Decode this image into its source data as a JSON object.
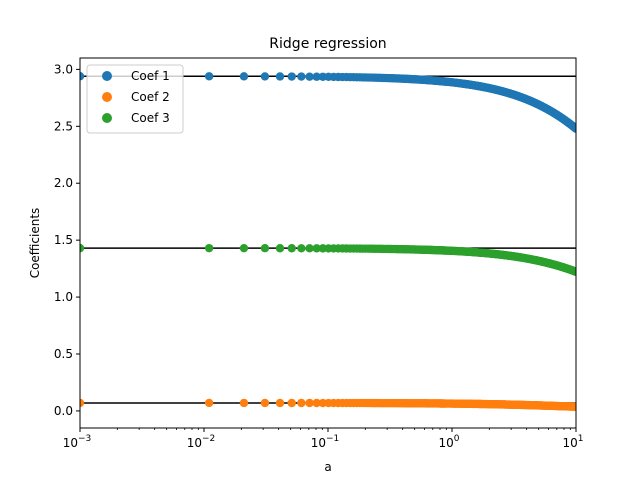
{
  "chart_data": {
    "type": "scatter",
    "title": "Ridge regression",
    "xlabel": "a",
    "ylabel": "Coefficients",
    "xscale": "log",
    "xlim": [
      0.001,
      10
    ],
    "ylim": [
      -0.15,
      3.1
    ],
    "yticks": [
      0.0,
      0.5,
      1.0,
      1.5,
      2.0,
      2.5,
      3.0
    ],
    "ytick_labels": [
      "0.0",
      "0.5",
      "1.0",
      "1.5",
      "2.0",
      "2.5",
      "3.0"
    ],
    "xticks": [
      {
        "value": 0.001,
        "base": "10",
        "exp": "−3"
      },
      {
        "value": 0.01,
        "base": "10",
        "exp": "−2"
      },
      {
        "value": 0.1,
        "base": "10",
        "exp": "−1"
      },
      {
        "value": 1,
        "base": "10",
        "exp": "0"
      },
      {
        "value": 10,
        "base": "10",
        "exp": "1"
      }
    ],
    "legend_position": "upper-left",
    "grid": false,
    "alpha_start": 0.001,
    "alpha_stop": 10,
    "alpha_step": 0.01,
    "series": [
      {
        "name": "Coef 1",
        "color": "#1f77b4",
        "ols": 2.94,
        "shrink": 0.0186
      },
      {
        "name": "Coef 2",
        "color": "#ff7f0e",
        "ols": 0.07,
        "shrink": 0.09
      },
      {
        "name": "Coef 3",
        "color": "#2ca02c",
        "ols": 1.43,
        "shrink": 0.017
      }
    ],
    "reference_lines": [
      2.94,
      0.07,
      1.43
    ],
    "reference_line_color": "#000000"
  }
}
